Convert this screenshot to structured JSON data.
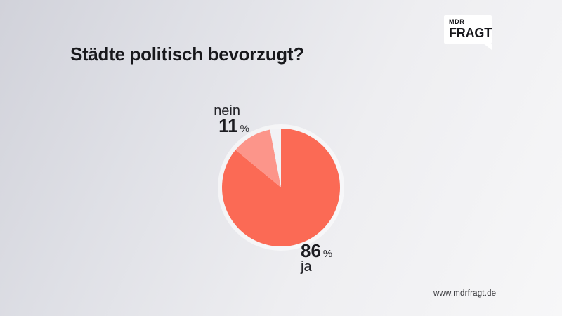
{
  "logo": {
    "brand": "MDR",
    "product": "FRAGT"
  },
  "footer": {
    "url": "www.mdrfragt.de"
  },
  "chart_data": {
    "type": "pie",
    "title": "Städte politisch bevorzugt?",
    "unit": "%",
    "legend_position": "none",
    "direction": "clockwise",
    "start_angle_deg": 0,
    "series": [
      {
        "name": "ja",
        "value": 86,
        "color": "#fb6a55",
        "labeled": true
      },
      {
        "name": "nein",
        "value": 11,
        "color": "#fc958a",
        "labeled": true
      },
      {
        "name": "",
        "value": 3,
        "color": "#f2f2f5",
        "labeled": false
      }
    ]
  }
}
